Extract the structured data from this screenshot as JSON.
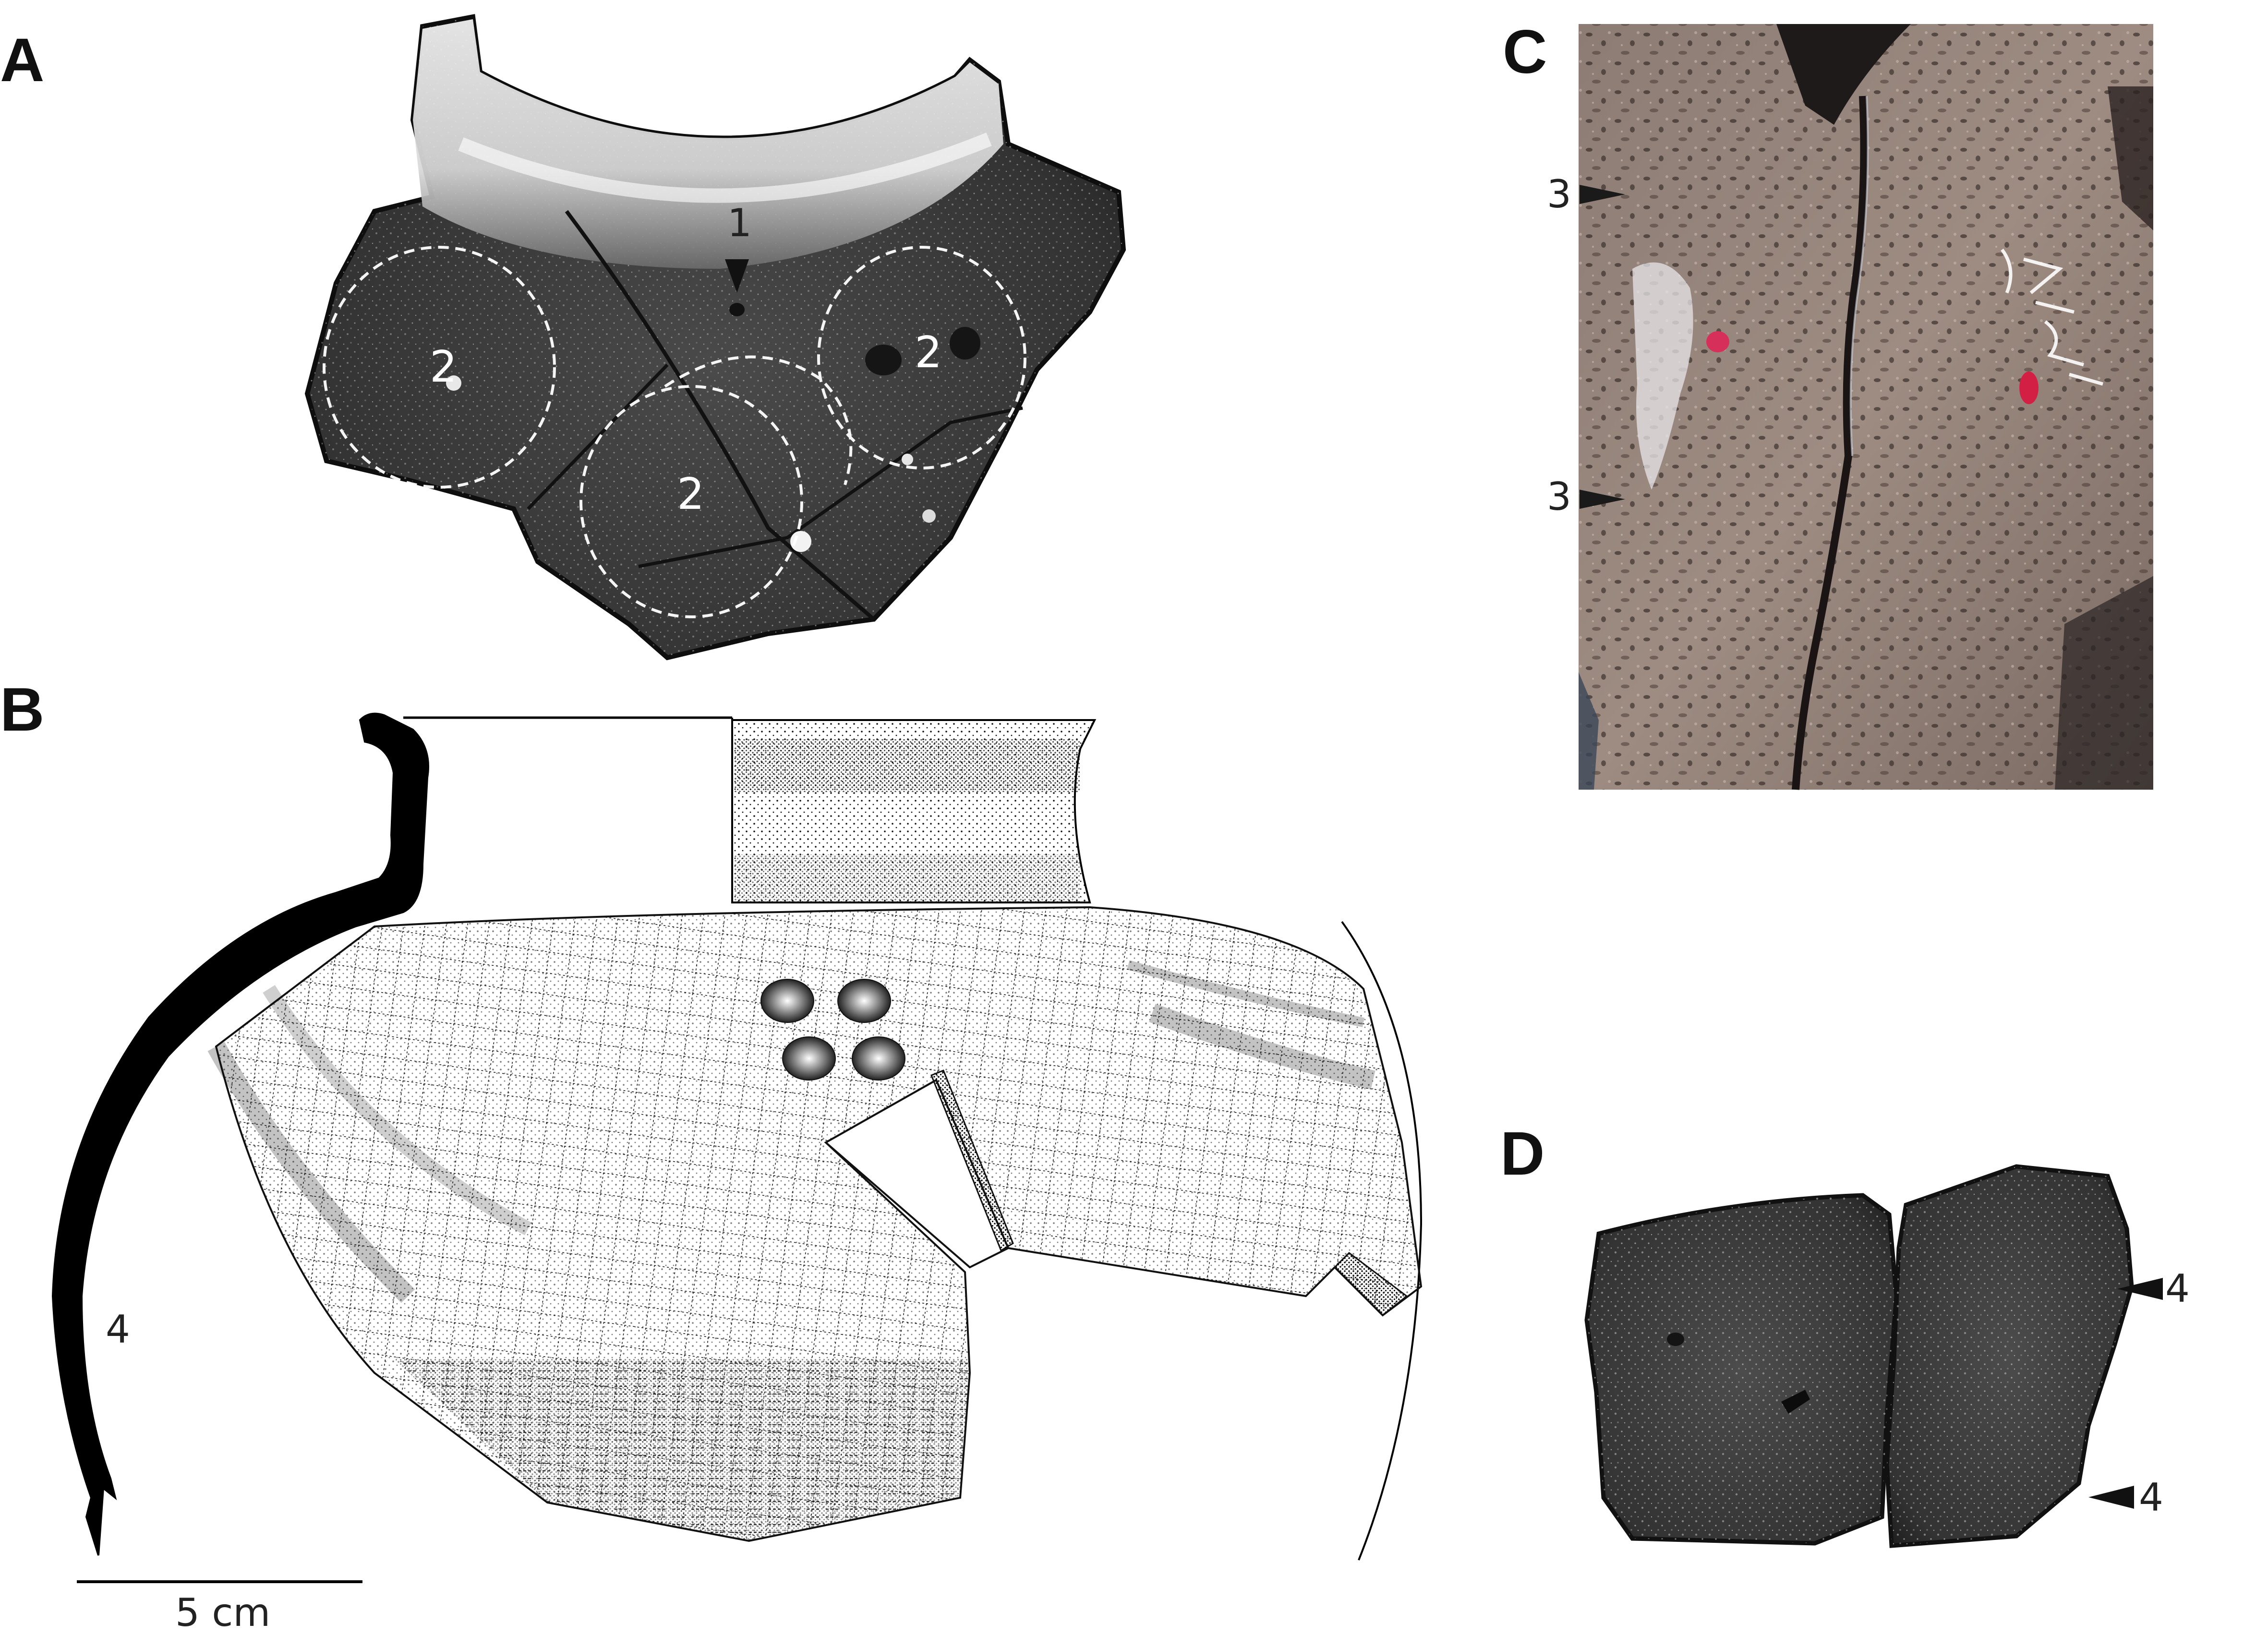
{
  "panels": {
    "a": {
      "letter": "A",
      "marker_1": "1",
      "marker_2": "2"
    },
    "b": {
      "letter": "B",
      "marker_4": "4",
      "scale_label": "5 cm"
    },
    "c": {
      "letter": "C",
      "marker_3": "3"
    },
    "d": {
      "letter": "D",
      "marker_4": "4"
    }
  }
}
